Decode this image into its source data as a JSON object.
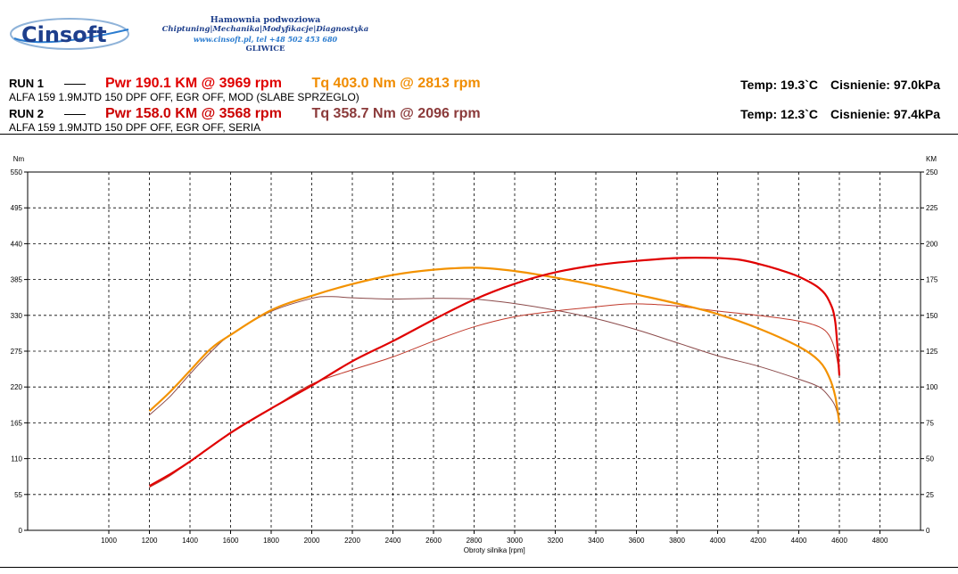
{
  "header": {
    "logo_text": "Cinsoft",
    "company_line1": "Hamownia podwoziowa",
    "company_line2": "Chiptuning|Mechanika|Modyfikacje|Diagnostyka",
    "company_line3": "www.cinsoft.pl, tel +48 502 453 680",
    "company_line4": "GLIWICE"
  },
  "runs": [
    {
      "label": "RUN 1",
      "pwr": "Pwr  190.1 KM @ 3969 rpm",
      "tq": "Tq 403.0 Nm @ 2813 rpm",
      "desc": "ALFA 159 1.9MJTD 150 DPF OFF, EGR OFF, MOD (SLABE SPRZEGLO)",
      "temp": "Temp: 19.3`C",
      "pressure": "Cisnienie: 97.0kPa"
    },
    {
      "label": "RUN 2",
      "pwr": "Pwr  158.0 KM @ 3568 rpm",
      "tq": "Tq 358.7 Nm @ 2096 rpm",
      "desc": "ALFA 159 1.9MJTD 150 DPF OFF, EGR OFF, SERIA",
      "temp": "Temp: 12.3`C",
      "pressure": "Cisnienie: 97.4kPa"
    }
  ],
  "colors": {
    "run1_power": "#e00000",
    "run1_torque": "#f39200",
    "run2_power": "#c0392b",
    "run2_torque": "#8b4a4a",
    "grid": "#000000"
  },
  "chart_data": {
    "type": "line",
    "title": "",
    "xlabel": "Obroty silnika [rpm]",
    "ylabel_left": "Nm",
    "ylabel_right": "KM",
    "xlim": [
      600,
      5000
    ],
    "x_ticks": [
      1000,
      1200,
      1400,
      1600,
      1800,
      2000,
      2200,
      2400,
      2600,
      2800,
      3000,
      3200,
      3400,
      3600,
      3800,
      4000,
      4200,
      4400,
      4600,
      4800
    ],
    "ylim_left": [
      0,
      550
    ],
    "y_ticks_left": [
      0,
      55,
      110,
      165,
      220,
      275,
      330,
      385,
      440,
      495,
      550
    ],
    "ylim_right": [
      0,
      250
    ],
    "y_ticks_right": [
      0,
      25,
      50,
      75,
      100,
      125,
      150,
      175,
      200,
      225,
      250
    ],
    "grid": true,
    "series": [
      {
        "name": "RUN 1 Tq",
        "axis": "left",
        "x": [
          1200,
          1300,
          1400,
          1500,
          1600,
          1800,
          2000,
          2200,
          2400,
          2600,
          2813,
          3000,
          3200,
          3400,
          3600,
          3800,
          4000,
          4200,
          4400,
          4500,
          4550,
          4580,
          4600
        ],
        "y": [
          183,
          212,
          245,
          278,
          300,
          338,
          360,
          378,
          392,
          400,
          403,
          398,
          388,
          376,
          362,
          348,
          332,
          310,
          282,
          260,
          235,
          205,
          165
        ]
      },
      {
        "name": "RUN 1 Pwr",
        "axis": "right",
        "x": [
          1200,
          1300,
          1400,
          1600,
          1800,
          2000,
          2200,
          2400,
          2600,
          2800,
          3000,
          3200,
          3400,
          3600,
          3800,
          3969,
          4100,
          4200,
          4300,
          4400,
          4500,
          4550,
          4580,
          4600
        ],
        "y": [
          31,
          39,
          48,
          68,
          85,
          101,
          118,
          132,
          147,
          161,
          172,
          180,
          185,
          188,
          190,
          190.1,
          189,
          186,
          182,
          177,
          169,
          160,
          145,
          108
        ]
      },
      {
        "name": "RUN 2 Tq",
        "axis": "left",
        "x": [
          1200,
          1300,
          1400,
          1500,
          1600,
          1800,
          2000,
          2096,
          2200,
          2400,
          2600,
          2800,
          3000,
          3200,
          3400,
          3600,
          3800,
          4000,
          4200,
          4400,
          4500,
          4550,
          4580,
          4600
        ],
        "y": [
          177,
          205,
          240,
          273,
          300,
          336,
          356,
          358.7,
          357,
          355,
          356,
          355,
          348,
          338,
          325,
          308,
          288,
          268,
          252,
          232,
          220,
          205,
          190,
          168
        ]
      },
      {
        "name": "RUN 2 Pwr",
        "axis": "right",
        "x": [
          1200,
          1300,
          1400,
          1600,
          1800,
          2000,
          2200,
          2400,
          2600,
          2800,
          3000,
          3200,
          3400,
          3568,
          3700,
          3800,
          4000,
          4200,
          4400,
          4500,
          4550,
          4580,
          4600
        ],
        "y": [
          30,
          38,
          48,
          68,
          85,
          102,
          112,
          121,
          132,
          142,
          149,
          153,
          156,
          158.0,
          157.5,
          156.5,
          153,
          150,
          146,
          142,
          136,
          125,
          110
        ]
      }
    ]
  }
}
